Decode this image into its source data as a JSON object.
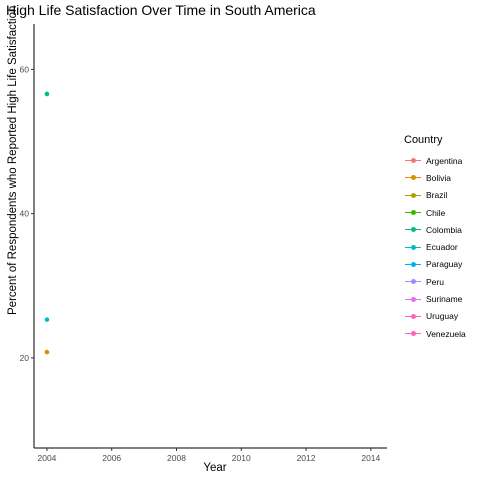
{
  "chart_data": {
    "type": "scatter",
    "title": "High Life Satisfaction Over Time in South America",
    "xlabel": "Year",
    "ylabel": "Percent of Respondents who Reported High Life Satisfaction",
    "xlim": [
      2003.6,
      2014.5
    ],
    "ylim": [
      7.5,
      66.3
    ],
    "x_ticks": [
      2004,
      2006,
      2008,
      2010,
      2012,
      2014
    ],
    "y_ticks": [
      20,
      40,
      60
    ],
    "grid": false,
    "legend_title": "Country",
    "legend_position": "right",
    "series": [
      {
        "name": "Argentina",
        "color": "#F8766D",
        "points": []
      },
      {
        "name": "Bolivia",
        "color": "#D89000",
        "points": [
          {
            "x": 2004,
            "y": 20.8
          }
        ]
      },
      {
        "name": "Brazil",
        "color": "#A3A500",
        "points": []
      },
      {
        "name": "Chile",
        "color": "#39B600",
        "points": []
      },
      {
        "name": "Colombia",
        "color": "#00BF7D",
        "points": [
          {
            "x": 2004,
            "y": 56.6
          }
        ]
      },
      {
        "name": "Ecuador",
        "color": "#00BFC4",
        "points": [
          {
            "x": 2004,
            "y": 25.3
          }
        ]
      },
      {
        "name": "Paraguay",
        "color": "#00B0F6",
        "points": []
      },
      {
        "name": "Peru",
        "color": "#9590FF",
        "points": []
      },
      {
        "name": "Suriname",
        "color": "#E76BF3",
        "points": []
      },
      {
        "name": "Uruguay",
        "color": "#FF62BC",
        "points": []
      },
      {
        "name": "Venezuela",
        "color": "#FF62BC",
        "points": []
      }
    ]
  }
}
